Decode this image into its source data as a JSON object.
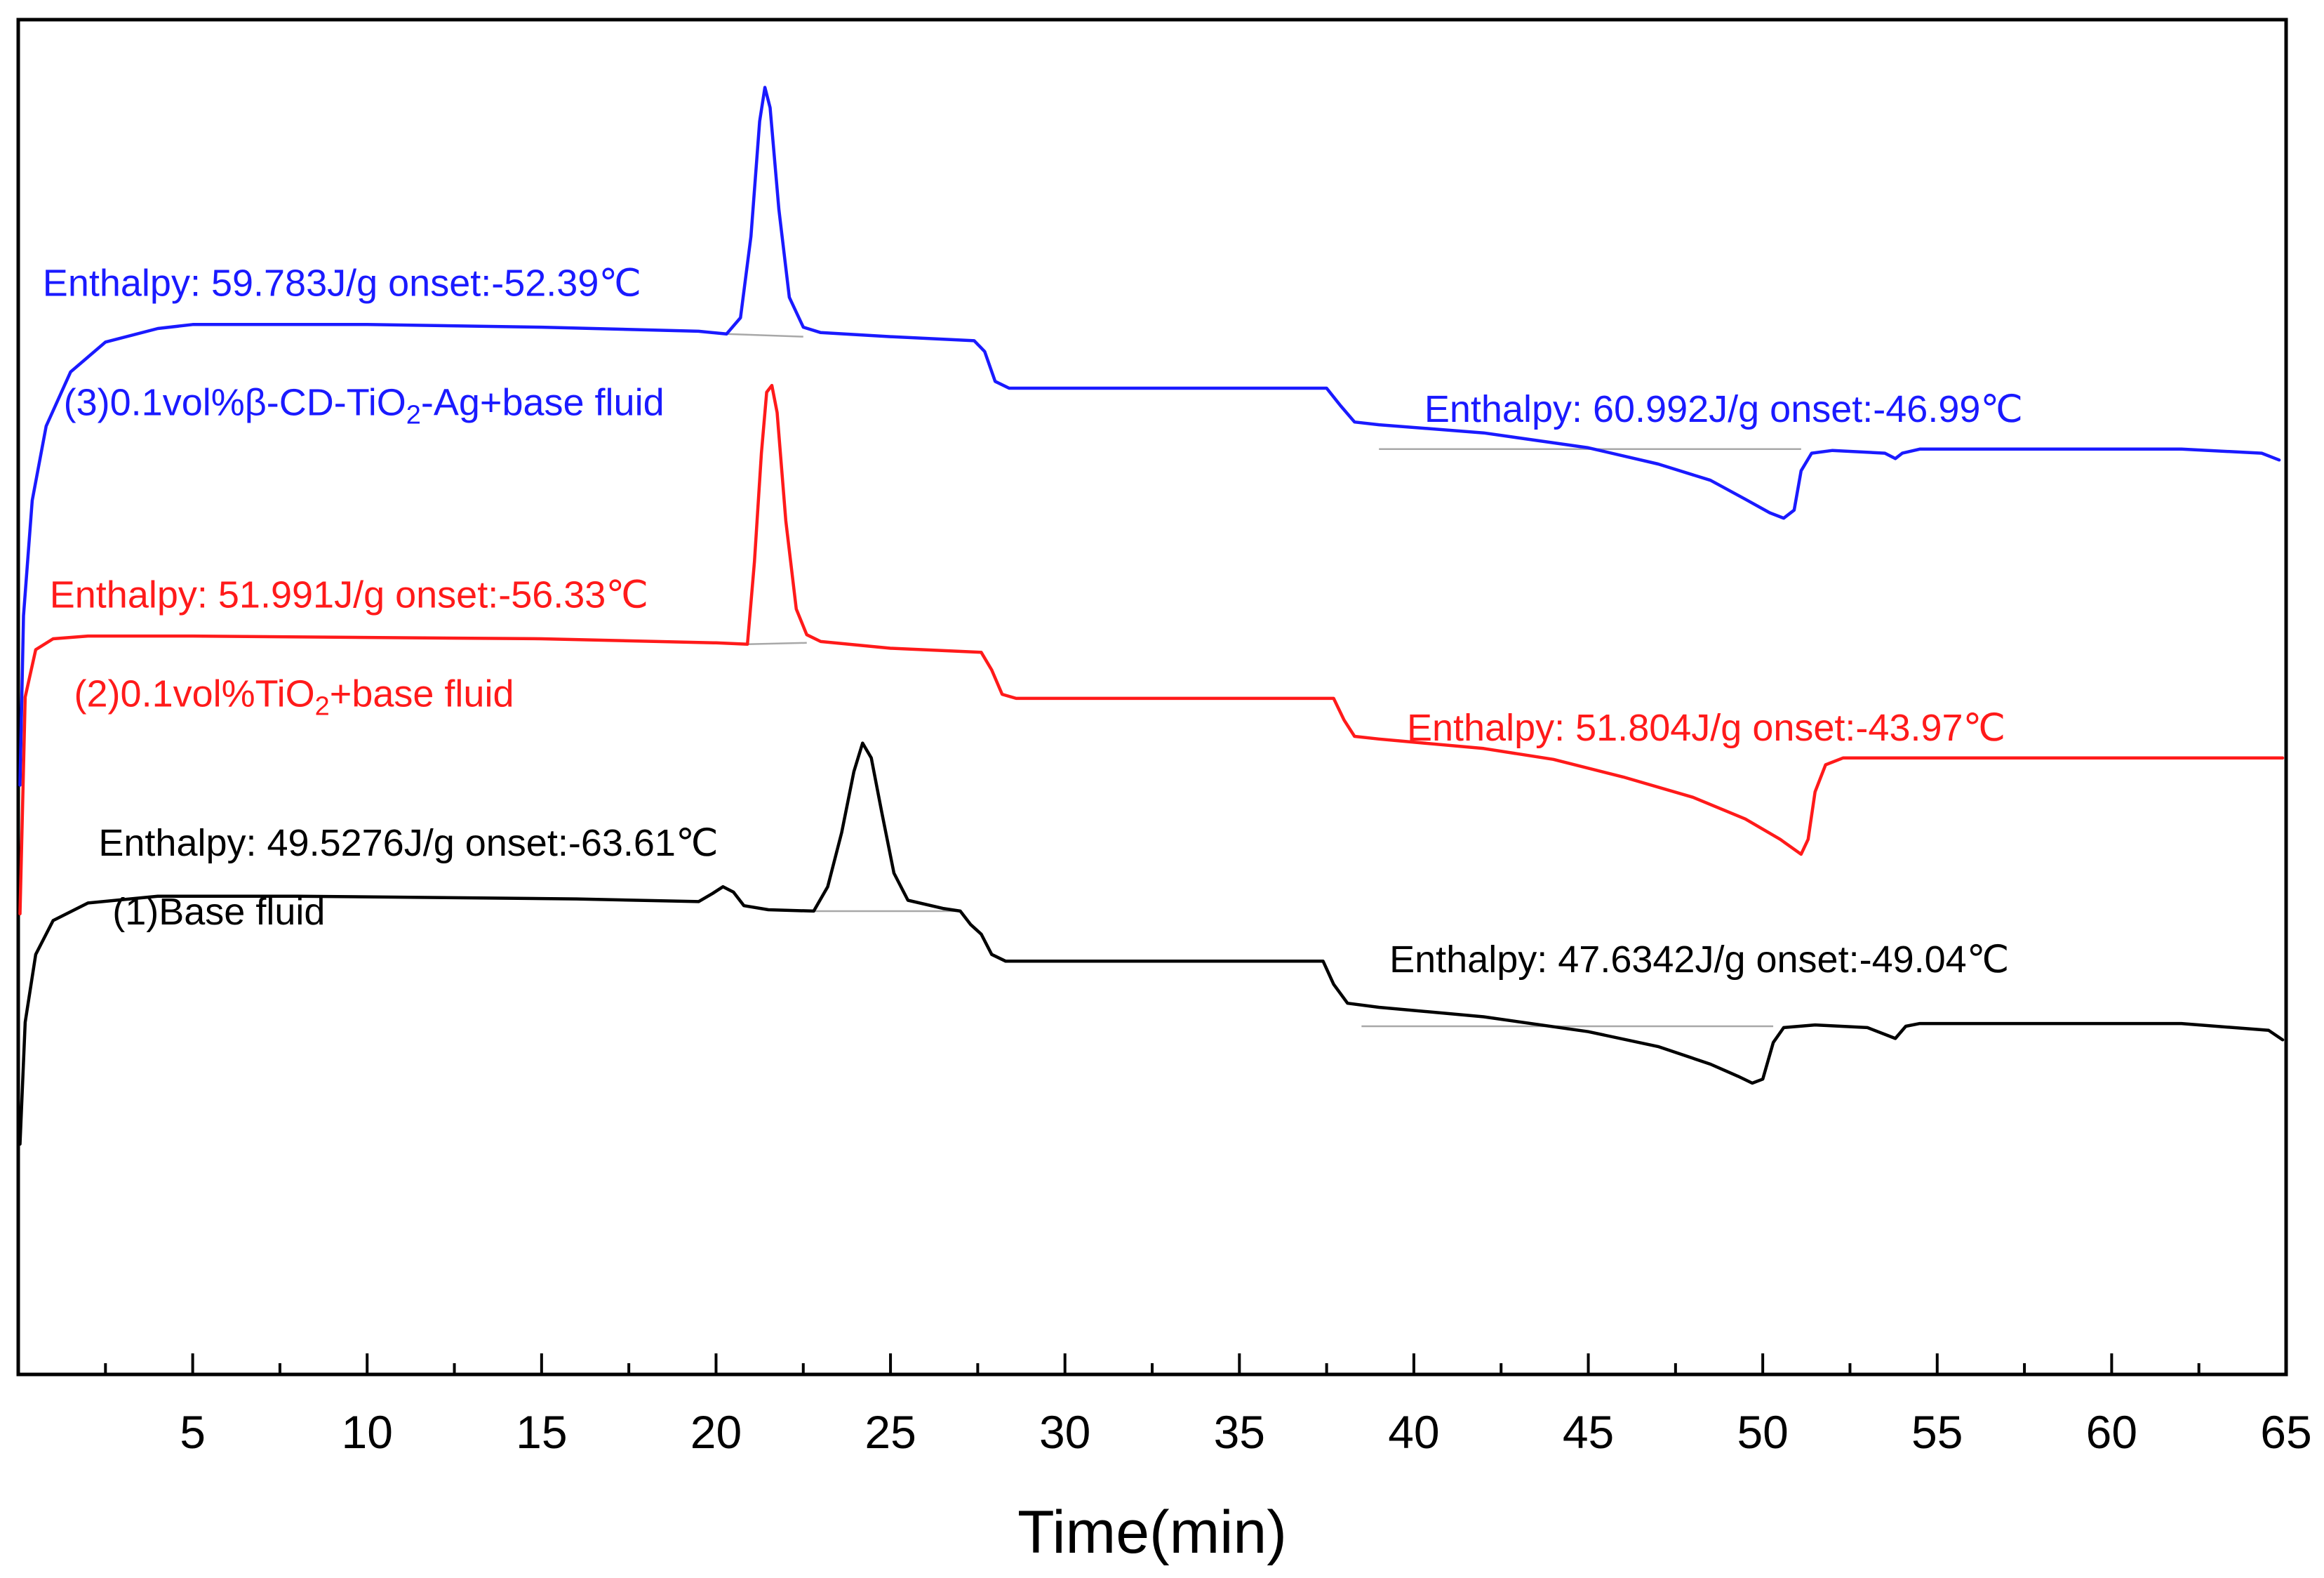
{
  "chart_data": {
    "type": "line",
    "title": "",
    "xlabel": "Time(min)",
    "ylabel": "",
    "xlim": [
      0,
      65
    ],
    "ylim": [
      0,
      100
    ],
    "xticks": [
      5,
      10,
      15,
      20,
      25,
      30,
      35,
      40,
      45,
      50,
      55,
      60,
      65
    ],
    "grid": false,
    "colors": {
      "base": "#000000",
      "tio2": "#ff1a1a",
      "cd": "#1a1aff",
      "baseline": "#a8a8a8"
    },
    "series": [
      {
        "id": "cd",
        "name": "(3)0.1vol%β-CD-TiO2-Ag+base fluid",
        "label_parts": [
          "(3)0.1vol%β-CD-TiO",
          "2",
          "-Ag+base fluid"
        ],
        "color": "#1a1aff",
        "points": [
          [
            0.05,
            43.5
          ],
          [
            0.15,
            56.0
          ],
          [
            0.4,
            64.5
          ],
          [
            0.8,
            70.0
          ],
          [
            1.5,
            74.0
          ],
          [
            2.5,
            76.2
          ],
          [
            4,
            77.2
          ],
          [
            5,
            77.5
          ],
          [
            10,
            77.5
          ],
          [
            15,
            77.3
          ],
          [
            19.5,
            77.0
          ],
          [
            20.3,
            76.8
          ],
          [
            20.7,
            78.0
          ],
          [
            21.0,
            84.0
          ],
          [
            21.25,
            92.5
          ],
          [
            21.4,
            95.0
          ],
          [
            21.55,
            93.5
          ],
          [
            21.8,
            86.0
          ],
          [
            22.1,
            79.5
          ],
          [
            22.5,
            77.3
          ],
          [
            23,
            76.9
          ],
          [
            25,
            76.6
          ],
          [
            27.4,
            76.3
          ],
          [
            27.7,
            75.5
          ],
          [
            28.0,
            73.3
          ],
          [
            28.4,
            72.8
          ],
          [
            30,
            72.8
          ],
          [
            35,
            72.8
          ],
          [
            37.5,
            72.8
          ],
          [
            37.9,
            71.5
          ],
          [
            38.3,
            70.3
          ],
          [
            39,
            70.1
          ],
          [
            42,
            69.5
          ],
          [
            45,
            68.4
          ],
          [
            47,
            67.2
          ],
          [
            48.5,
            66.0
          ],
          [
            49.5,
            64.6
          ],
          [
            50.2,
            63.6
          ],
          [
            50.6,
            63.2
          ],
          [
            50.9,
            63.8
          ],
          [
            51.1,
            66.7
          ],
          [
            51.4,
            68.0
          ],
          [
            52,
            68.2
          ],
          [
            53.5,
            68.0
          ],
          [
            53.8,
            67.6
          ],
          [
            54.0,
            68.0
          ],
          [
            54.5,
            68.3
          ],
          [
            58,
            68.3
          ],
          [
            62,
            68.3
          ],
          [
            64.3,
            68.0
          ],
          [
            64.8,
            67.5
          ]
        ],
        "baselines": [
          [
            [
              20.3,
              76.8
            ],
            [
              22.5,
              76.6
            ]
          ],
          [
            [
              39,
              68.3
            ],
            [
              51.1,
              68.3
            ]
          ]
        ],
        "annotations": [
          {
            "text": "Enthalpy: 59.783J/g onset:-52.39℃",
            "x": 0.7,
            "y": 79.6
          },
          {
            "text": "Enthalpy: 60.992J/g onset:-46.99℃",
            "x": 40.3,
            "y": 70.3
          }
        ]
      },
      {
        "id": "tio2",
        "name": "(2)0.1vol%TiO2+base fluid",
        "label_parts": [
          "(2)0.1vol%TiO",
          "2",
          "+base fluid"
        ],
        "color": "#ff1a1a",
        "points": [
          [
            0.05,
            34.0
          ],
          [
            0.2,
            50.0
          ],
          [
            0.5,
            53.5
          ],
          [
            1.0,
            54.3
          ],
          [
            2,
            54.5
          ],
          [
            5,
            54.5
          ],
          [
            10,
            54.4
          ],
          [
            15,
            54.3
          ],
          [
            20,
            54.0
          ],
          [
            20.9,
            53.9
          ],
          [
            21.1,
            60.0
          ],
          [
            21.3,
            68.0
          ],
          [
            21.45,
            72.5
          ],
          [
            21.6,
            73.0
          ],
          [
            21.75,
            71.0
          ],
          [
            22.0,
            63.0
          ],
          [
            22.3,
            56.5
          ],
          [
            22.6,
            54.6
          ],
          [
            23,
            54.1
          ],
          [
            25,
            53.6
          ],
          [
            27.6,
            53.3
          ],
          [
            27.9,
            52.0
          ],
          [
            28.2,
            50.2
          ],
          [
            28.6,
            49.9
          ],
          [
            30,
            49.9
          ],
          [
            35,
            49.9
          ],
          [
            37.7,
            49.9
          ],
          [
            38.0,
            48.3
          ],
          [
            38.3,
            47.1
          ],
          [
            39,
            46.9
          ],
          [
            42,
            46.2
          ],
          [
            44,
            45.4
          ],
          [
            46,
            44.1
          ],
          [
            48,
            42.6
          ],
          [
            49.5,
            41.0
          ],
          [
            50.5,
            39.5
          ],
          [
            51.1,
            38.4
          ],
          [
            51.3,
            39.5
          ],
          [
            51.5,
            43.0
          ],
          [
            51.8,
            45.0
          ],
          [
            52.3,
            45.5
          ],
          [
            55,
            45.5
          ],
          [
            60,
            45.5
          ],
          [
            64.9,
            45.5
          ]
        ],
        "baselines": [
          [
            [
              20.9,
              53.9
            ],
            [
              22.6,
              54.0
            ]
          ]
        ],
        "annotations": [
          {
            "text": "Enthalpy: 51.991J/g onset:-56.33℃",
            "x": 0.9,
            "y": 56.6
          },
          {
            "text": "Enthalpy: 51.804J/g onset:-43.97℃",
            "x": 39.8,
            "y": 46.8
          }
        ]
      },
      {
        "id": "base",
        "name": "(1)Base fluid",
        "label_parts": [
          "(1)Base fluid",
          "",
          ""
        ],
        "color": "#000000",
        "points": [
          [
            0.05,
            17.0
          ],
          [
            0.2,
            26.0
          ],
          [
            0.5,
            31.0
          ],
          [
            1,
            33.5
          ],
          [
            2,
            34.8
          ],
          [
            4,
            35.3
          ],
          [
            8,
            35.3
          ],
          [
            12,
            35.2
          ],
          [
            16,
            35.1
          ],
          [
            19.5,
            34.9
          ],
          [
            19.9,
            35.5
          ],
          [
            20.2,
            36.0
          ],
          [
            20.5,
            35.6
          ],
          [
            20.8,
            34.6
          ],
          [
            21.5,
            34.3
          ],
          [
            22.8,
            34.2
          ],
          [
            23.2,
            36.0
          ],
          [
            23.6,
            40.0
          ],
          [
            23.95,
            44.5
          ],
          [
            24.2,
            46.6
          ],
          [
            24.45,
            45.5
          ],
          [
            24.75,
            41.5
          ],
          [
            25.1,
            37.0
          ],
          [
            25.5,
            35.0
          ],
          [
            26.5,
            34.4
          ],
          [
            27,
            34.2
          ],
          [
            27.3,
            33.2
          ],
          [
            27.6,
            32.5
          ],
          [
            27.9,
            31.0
          ],
          [
            28.3,
            30.5
          ],
          [
            30,
            30.5
          ],
          [
            35,
            30.5
          ],
          [
            37.4,
            30.5
          ],
          [
            37.7,
            28.8
          ],
          [
            38.1,
            27.4
          ],
          [
            39,
            27.1
          ],
          [
            42,
            26.4
          ],
          [
            45,
            25.3
          ],
          [
            47,
            24.2
          ],
          [
            48.5,
            22.9
          ],
          [
            49.3,
            22.0
          ],
          [
            49.7,
            21.5
          ],
          [
            50.0,
            21.8
          ],
          [
            50.3,
            24.5
          ],
          [
            50.6,
            25.6
          ],
          [
            51.5,
            25.8
          ],
          [
            53.0,
            25.6
          ],
          [
            53.6,
            25.0
          ],
          [
            53.8,
            24.8
          ],
          [
            54.1,
            25.7
          ],
          [
            54.5,
            25.9
          ],
          [
            58,
            25.9
          ],
          [
            62,
            25.9
          ],
          [
            64.5,
            25.4
          ],
          [
            64.9,
            24.7
          ]
        ],
        "baselines": [
          [
            [
              22.8,
              34.2
            ],
            [
              27,
              34.2
            ]
          ],
          [
            [
              38.5,
              25.7
            ],
            [
              50.3,
              25.7
            ]
          ]
        ],
        "annotations": [
          {
            "text": "Enthalpy: 49.5276J/g onset:-63.61℃",
            "x": 2.3,
            "y": 38.3
          },
          {
            "text": "Enthalpy: 47.6342J/g onset:-49.04℃",
            "x": 39.3,
            "y": 29.7
          }
        ]
      }
    ],
    "series_label_positions": {
      "cd": {
        "x": 1.3,
        "y": 70.8
      },
      "tio2": {
        "x": 1.6,
        "y": 49.3
      },
      "base": {
        "x": 2.7,
        "y": 33.2
      }
    }
  }
}
